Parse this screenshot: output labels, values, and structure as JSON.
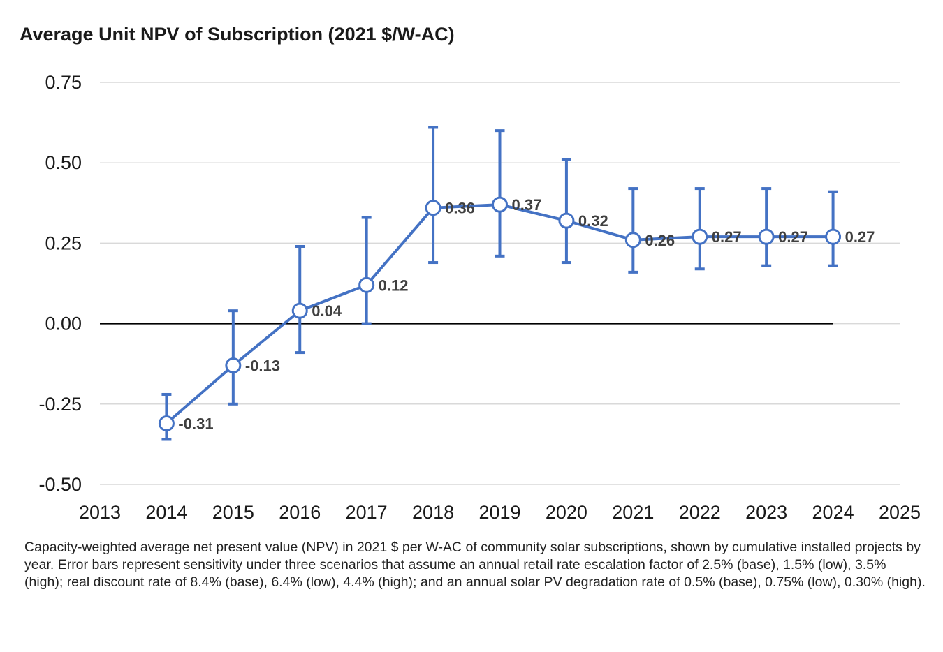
{
  "chart_data": {
    "type": "line",
    "title": "Average Unit NPV of Subscription (2021 $/W-AC)",
    "xlabel": "",
    "ylabel": "",
    "xlim": [
      2013,
      2025
    ],
    "ylim": [
      -0.5,
      0.75
    ],
    "x_ticks": [
      "2013",
      "2014",
      "2015",
      "2016",
      "2017",
      "2018",
      "2019",
      "2020",
      "2021",
      "2022",
      "2023",
      "2024",
      "2025"
    ],
    "y_ticks": [
      "0.75",
      "0.50",
      "0.25",
      "0.00",
      "-0.25",
      "-0.50"
    ],
    "grid": true,
    "legend": "none",
    "series": [
      {
        "name": "Average Unit NPV",
        "x": [
          2014,
          2015,
          2016,
          2017,
          2018,
          2019,
          2020,
          2021,
          2022,
          2023,
          2024
        ],
        "values": [
          -0.31,
          -0.13,
          0.04,
          0.12,
          0.36,
          0.37,
          0.32,
          0.26,
          0.27,
          0.27,
          0.27
        ],
        "labels": [
          "-0.31",
          "-0.13",
          "0.04",
          "0.12",
          "0.36",
          "0.37",
          "0.32",
          "0.26",
          "0.27",
          "0.27",
          "0.27"
        ],
        "err_low": [
          -0.36,
          -0.25,
          -0.09,
          0.0,
          0.19,
          0.21,
          0.19,
          0.16,
          0.17,
          0.18,
          0.18
        ],
        "err_high": [
          -0.22,
          0.04,
          0.24,
          0.33,
          0.61,
          0.6,
          0.51,
          0.42,
          0.42,
          0.42,
          0.41
        ]
      }
    ],
    "colors": {
      "line": "#4472c4",
      "marker_fill": "#ffffff",
      "grid": "#d9d9d9",
      "zero_line": "#000000"
    }
  },
  "caption": "Capacity-weighted average net present value (NPV) in 2021 $ per W-AC of community solar subscriptions, shown by cumulative installed projects by year. Error bars represent sensitivity under three scenarios that assume an annual retail rate escalation factor of 2.5% (base), 1.5% (low), 3.5% (high); real discount rate of 8.4% (base), 6.4% (low), 4.4% (high); and an annual solar PV degradation rate of 0.5% (base), 0.75% (low), 0.30% (high)."
}
